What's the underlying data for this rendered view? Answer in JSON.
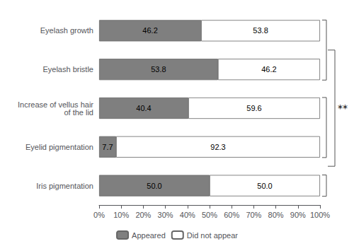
{
  "chart_data": {
    "type": "bar",
    "orientation": "horizontal",
    "stacked": true,
    "categories": [
      "Eyelash growth",
      "Eyelash bristle",
      "Increase of vellus hair\nof the lid",
      "Eyelid pigmentation",
      "Iris pigmentation"
    ],
    "series": [
      {
        "name": "Appeared",
        "color": "#7f7f7f",
        "values": [
          46.2,
          53.8,
          40.4,
          7.7,
          50.0
        ],
        "value_labels": [
          "46.2",
          "53.8",
          "40.4",
          "7.7",
          "50.0"
        ]
      },
      {
        "name": "Did not appear",
        "color": "#ffffff",
        "values": [
          53.8,
          46.2,
          59.6,
          92.3,
          50.0
        ],
        "value_labels": [
          "53.8",
          "46.2",
          "59.6",
          "92.3",
          "50.0"
        ]
      }
    ],
    "xlim": [
      0,
      100
    ],
    "xticks": [
      {
        "value": 0,
        "label": "0%"
      },
      {
        "value": 10,
        "label": "10%"
      },
      {
        "value": 20,
        "label": "20%"
      },
      {
        "value": 30,
        "label": "30%"
      },
      {
        "value": 40,
        "label": "40%"
      },
      {
        "value": 50,
        "label": "50%"
      },
      {
        "value": 60,
        "label": "60%"
      },
      {
        "value": 70,
        "label": "70%"
      },
      {
        "value": 80,
        "label": "80%"
      },
      {
        "value": 90,
        "label": "90%"
      },
      {
        "value": 100,
        "label": "100%"
      }
    ],
    "data_labels": true,
    "grid": false,
    "legend": "bottom",
    "annotations": [
      "**"
    ]
  }
}
